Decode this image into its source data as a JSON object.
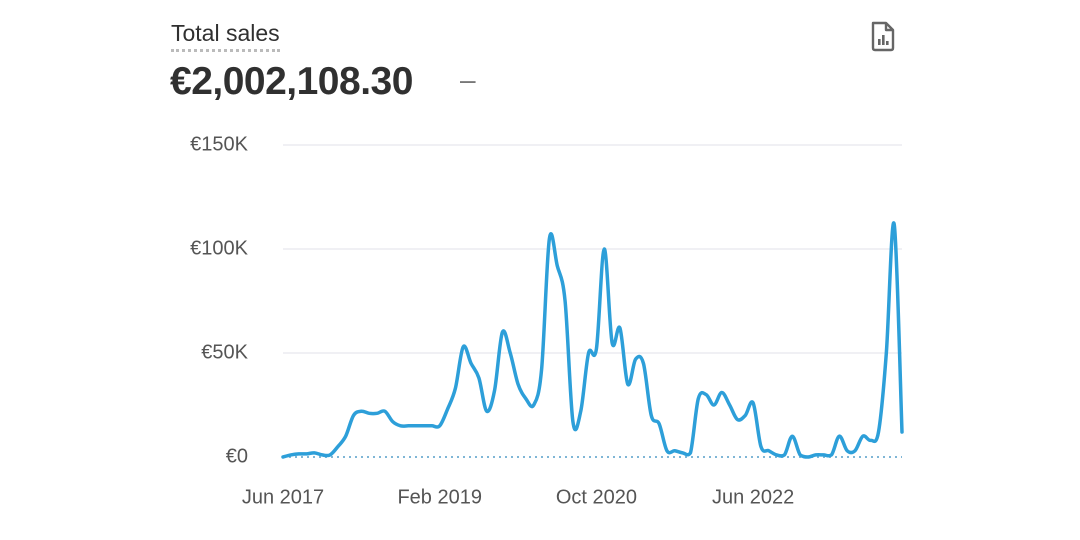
{
  "chart_data": {
    "type": "line",
    "title": "Total sales",
    "subtitle": "€2,002,108.30",
    "comparison": "–",
    "categories": [
      "Jun 2017",
      null,
      null,
      null,
      null,
      null,
      null,
      null,
      null,
      null,
      null,
      null,
      null,
      null,
      null,
      null,
      null,
      null,
      null,
      null,
      "Feb 2019",
      null,
      null,
      null,
      null,
      null,
      null,
      null,
      null,
      null,
      null,
      null,
      null,
      null,
      null,
      null,
      null,
      null,
      null,
      null,
      "Oct 2020",
      null,
      null,
      null,
      null,
      null,
      null,
      null,
      null,
      null,
      null,
      null,
      null,
      null,
      null,
      null,
      null,
      null,
      null,
      null,
      "Jun 2022",
      null,
      null,
      null,
      null,
      null,
      null,
      null,
      null,
      null,
      null,
      null,
      null,
      null,
      null,
      null,
      null,
      null,
      null,
      null
    ],
    "series": [
      {
        "name": "Total sales",
        "color": "#2d9fd9",
        "values": [
          0,
          1000,
          1500,
          1500,
          2000,
          1000,
          1000,
          5000,
          10000,
          20000,
          22000,
          21000,
          21000,
          22000,
          17000,
          15000,
          15000,
          15000,
          15000,
          15000,
          15000,
          23000,
          33000,
          53000,
          45000,
          38000,
          22000,
          32000,
          60000,
          50000,
          35000,
          28000,
          25000,
          42000,
          105000,
          92000,
          75000,
          17000,
          22000,
          50000,
          52000,
          100000,
          55000,
          62000,
          35000,
          47000,
          45000,
          20000,
          16000,
          3000,
          3000,
          2000,
          2000,
          28000,
          30000,
          25000,
          31000,
          25000,
          18000,
          20000,
          26000,
          5000,
          3000,
          1000,
          1000,
          10000,
          1000,
          0,
          1000,
          1000,
          1000,
          10000,
          3000,
          3000,
          10000,
          8000,
          12000,
          50000,
          112000,
          12000
        ]
      }
    ],
    "ylim": [
      0,
      150000
    ],
    "yticks": [
      {
        "value": 0,
        "label": "€0"
      },
      {
        "value": 50000,
        "label": "€50K"
      },
      {
        "value": 100000,
        "label": "€100K"
      },
      {
        "value": 150000,
        "label": "€150K"
      }
    ],
    "grid": true
  }
}
